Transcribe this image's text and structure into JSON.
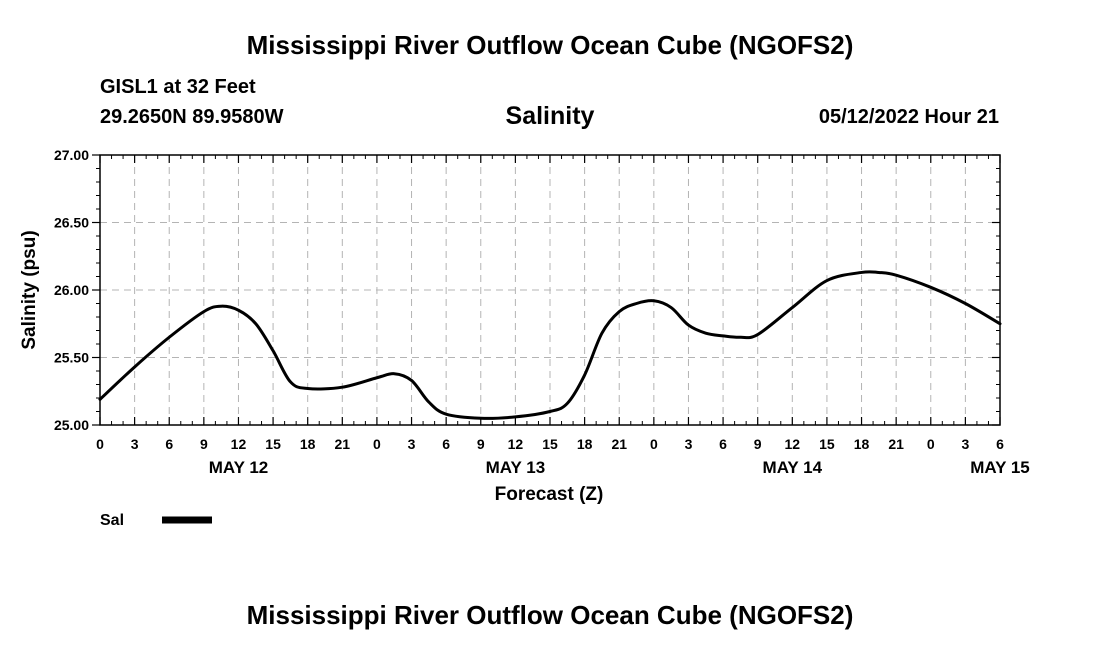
{
  "header": {
    "title": "Mississippi River Outflow Ocean Cube (NGOFS2)",
    "station": "GISL1 at 32 Feet",
    "coords": "29.2650N  89.9580W",
    "variable": "Salinity",
    "datetime": "05/12/2022 Hour 21"
  },
  "footer": {
    "title": "Mississippi River Outflow Ocean Cube (NGOFS2)"
  },
  "legend": {
    "items": [
      {
        "label": "Sal",
        "color": "#000000"
      }
    ]
  },
  "chart_data": {
    "type": "line",
    "title": "Salinity",
    "xlabel": "Forecast (Z)",
    "ylabel": "Salinity (psu)",
    "xlim": [
      0,
      78
    ],
    "ylim": [
      25.0,
      27.0
    ],
    "yticks": [
      "25.00",
      "25.50",
      "26.00",
      "26.50",
      "27.00"
    ],
    "xticks": [
      "0",
      "3",
      "6",
      "9",
      "12",
      "15",
      "18",
      "21",
      "0",
      "3",
      "6",
      "9",
      "12",
      "15",
      "18",
      "21",
      "0",
      "3",
      "6",
      "9",
      "12",
      "15",
      "18",
      "21",
      "0",
      "3",
      "6"
    ],
    "day_labels": [
      {
        "hour": 12,
        "label": "MAY 12"
      },
      {
        "hour": 36,
        "label": "MAY 13"
      },
      {
        "hour": 60,
        "label": "MAY 14"
      },
      {
        "hour": 78,
        "label": "MAY 15"
      }
    ],
    "grid": true,
    "series": [
      {
        "name": "Sal",
        "color": "#000000",
        "x": [
          0,
          3,
          6,
          9,
          10.5,
          12,
          13.5,
          15,
          16.5,
          18,
          21,
          24,
          25.5,
          27,
          28.5,
          30,
          33,
          36,
          39,
          40.5,
          42,
          43.5,
          45,
          46.5,
          48,
          49.5,
          51,
          52.5,
          54,
          55.5,
          57,
          60,
          63,
          66,
          67.5,
          69,
          72,
          75,
          78
        ],
        "values": [
          25.19,
          25.43,
          25.65,
          25.84,
          25.88,
          25.85,
          25.75,
          25.55,
          25.32,
          25.27,
          25.28,
          25.35,
          25.38,
          25.33,
          25.17,
          25.08,
          25.05,
          25.06,
          25.1,
          25.16,
          25.37,
          25.68,
          25.84,
          25.9,
          25.92,
          25.87,
          25.74,
          25.68,
          25.66,
          25.65,
          25.67,
          25.87,
          26.07,
          26.13,
          26.13,
          26.11,
          26.02,
          25.9,
          25.75
        ]
      }
    ]
  }
}
